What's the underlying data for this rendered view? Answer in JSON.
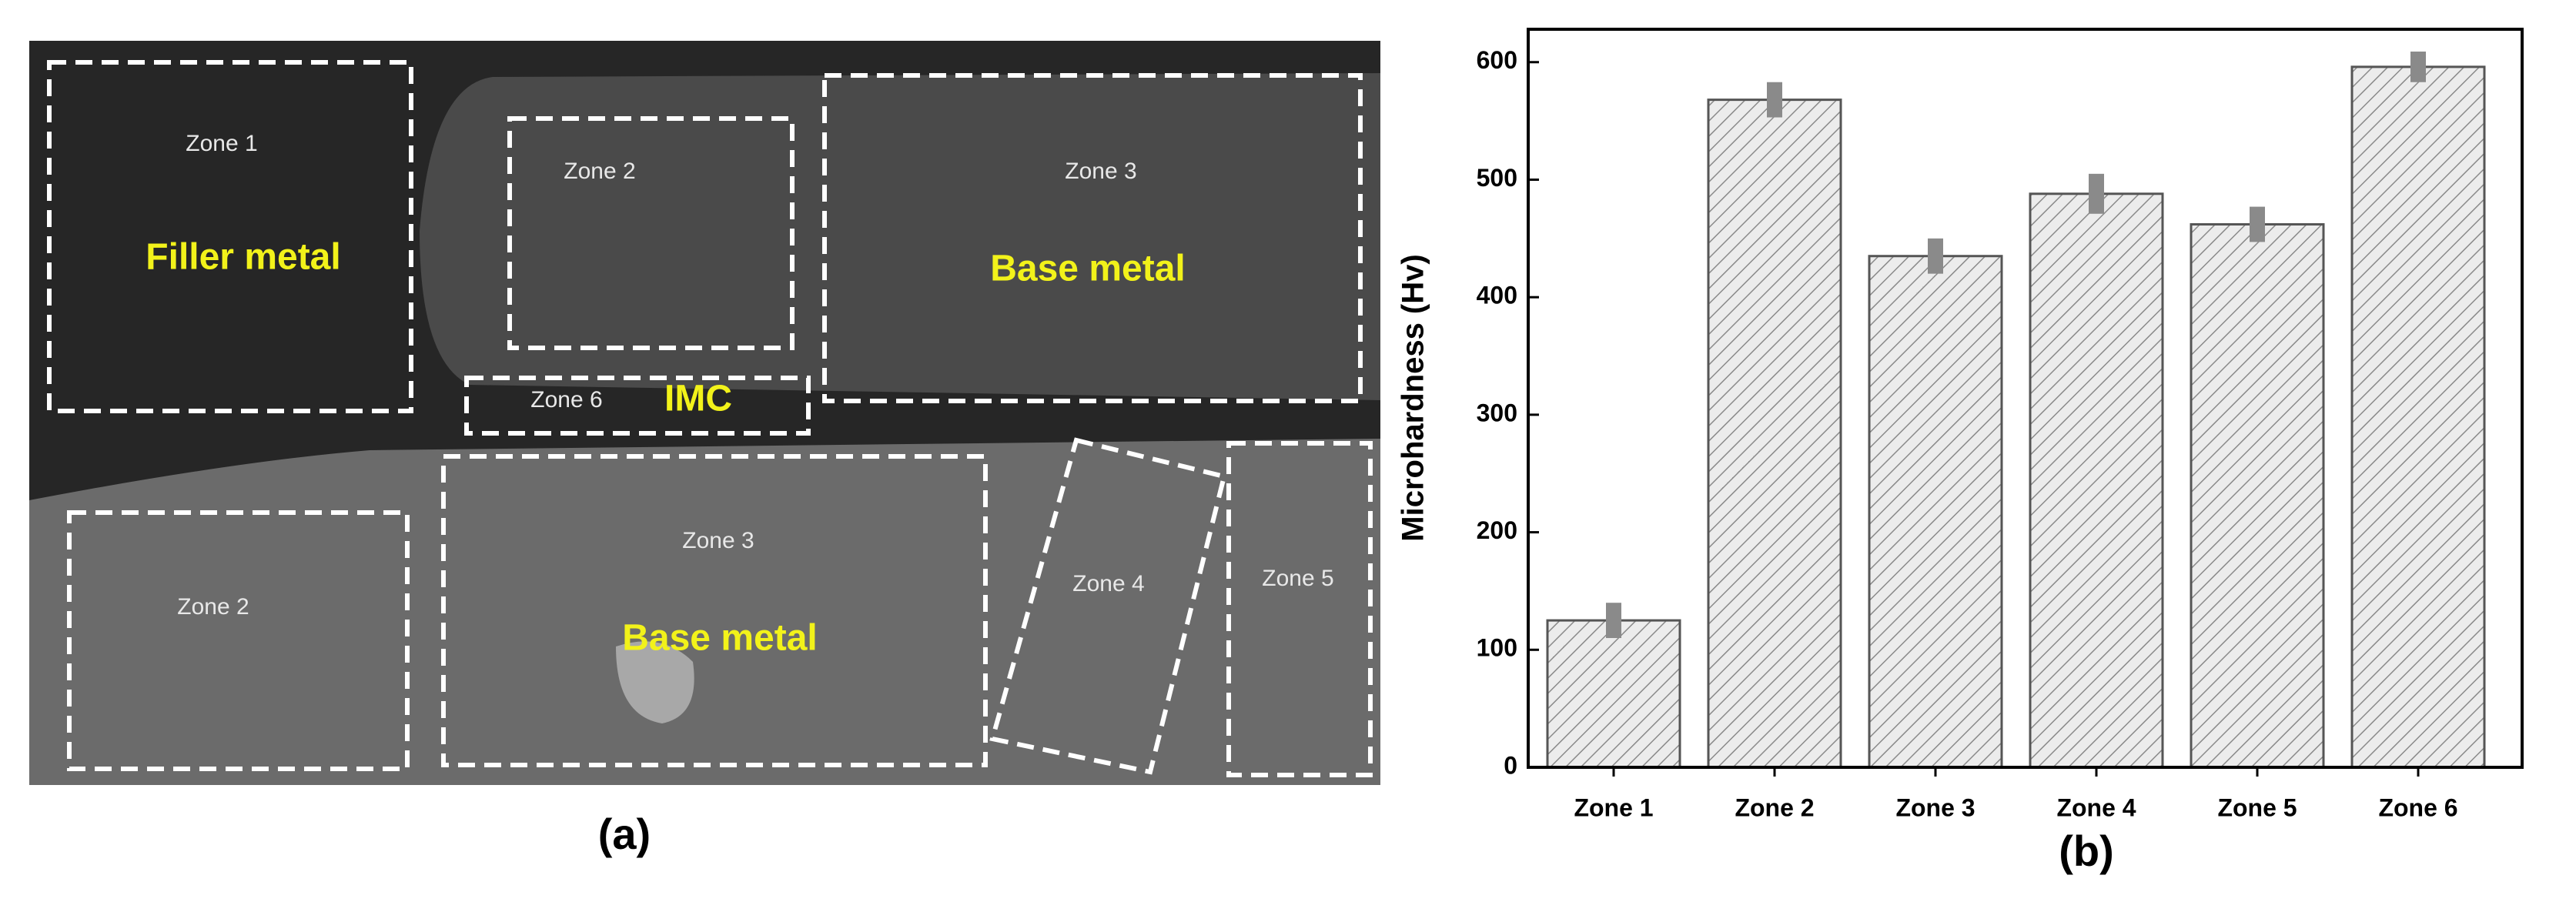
{
  "micrograph": {
    "labels": [
      "Zone 1",
      "Filler metal",
      "Zone 2",
      "Zone 3",
      "Base metal",
      "Zone 6",
      "IMC",
      "Zone 3",
      "Base metal",
      "Zone 2",
      "Zone 4",
      "Zone 5"
    ],
    "caption": "(a)"
  },
  "chart_data": {
    "type": "bar",
    "caption": "(b)",
    "y_label": "Microhardness (Hv)",
    "categories": [
      "Zone 1",
      "Zone 2",
      "Zone 3",
      "Zone 4",
      "Zone 5",
      "Zone 6"
    ],
    "values": [
      125,
      568,
      435,
      488,
      462,
      596
    ],
    "errors": [
      15,
      15,
      15,
      17,
      15,
      13
    ],
    "color": "#e6e6e6",
    "ylim": [
      0,
      628
    ],
    "yticks": [
      0,
      100,
      200,
      300,
      400,
      500,
      600
    ]
  }
}
